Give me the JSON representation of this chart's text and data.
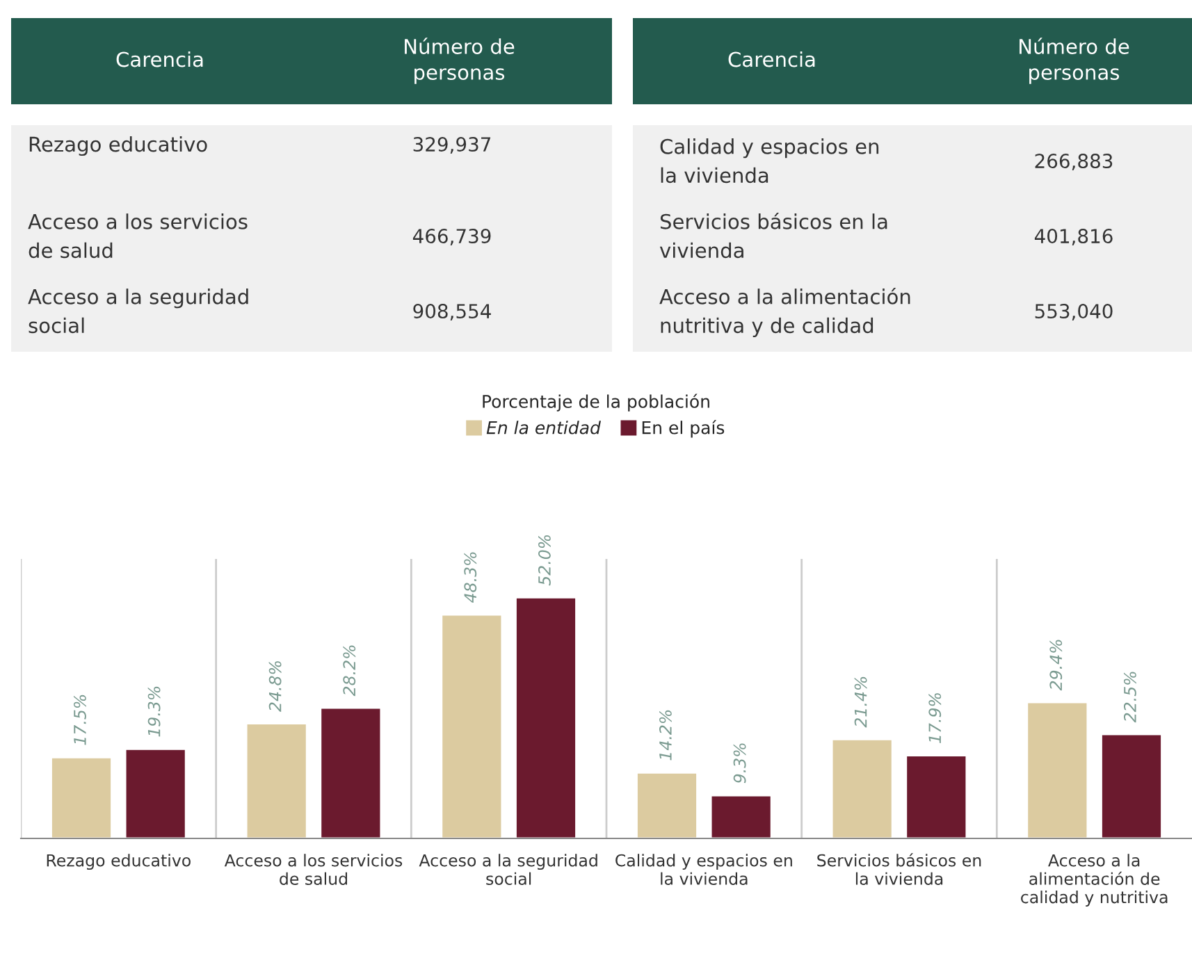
{
  "chart_data": [
    {
      "type": "other",
      "annotations": [
        "Carencia",
        "Número de\npersonas",
        "Carencia",
        "Número de\npersonas",
        "Rezago educativo",
        "329,937",
        "Calidad y espacios en\nla vivienda",
        "266,883",
        "Acceso a los servicios\nde salud",
        "466,739",
        "Servicios básicos en la\nvivienda",
        "401,816",
        "Acceso a la seguridad\nsocial",
        "908,554",
        "Acceso a la alimentación\nnutritiva y de calidad",
        "553,040"
      ]
    },
    {
      "type": "bar",
      "legend_title": "Porcentaje de la población",
      "legend": "top",
      "grid": "x",
      "categories": [
        "Rezago educativo",
        "Acceso a los servicios\nde salud",
        "Acceso a la seguridad\nsocial",
        "Calidad y espacios en\nla vivienda",
        "Servicios básicos en\nla vivienda",
        "Acceso a la\nalimentación de\ncalidad y nutritiva"
      ],
      "series": [
        {
          "name": "En la entidad",
          "color": "#dccba0",
          "values": [
            17.5,
            24.8,
            48.3,
            14.2,
            21.4,
            29.4
          ],
          "value_labels": [
            "17.5%",
            "24.8%",
            "48.3%",
            "14.2%",
            "21.4%",
            "29.4%"
          ]
        },
        {
          "name": "En el país",
          "color": "#6b1a2e",
          "values": [
            19.3,
            28.2,
            52.0,
            9.3,
            17.9,
            22.5
          ],
          "value_labels": [
            "19.3%",
            "28.2%",
            "52.0%",
            "9.3%",
            "17.9%",
            "22.5%"
          ]
        }
      ]
    }
  ]
}
